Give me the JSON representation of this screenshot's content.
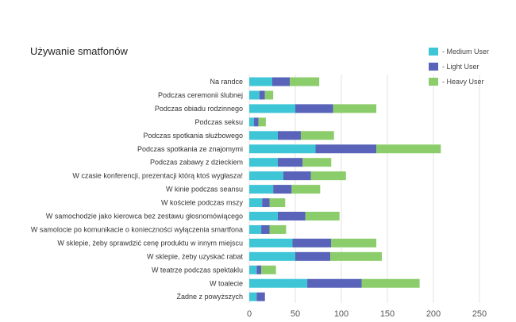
{
  "chart_data": {
    "type": "bar",
    "orientation": "horizontal",
    "stacked": true,
    "title": "Używanie smatfonów",
    "categories": [
      "Na randce",
      "Podczas ceremonii ślubnej",
      "Podczas obiadu rodzinnego",
      "Podczas seksu",
      "Podczas spotkania służbowego",
      "Podczas spotkania ze znajomymi",
      "Podczas zabawy z dzieckiem",
      "W czasie konferencji, prezentacji którą ktoś wygłasza!",
      "W kinie podczas seansu",
      "W kościele podczas mszy",
      "W samochodzie jako kierowca bez zestawu głosnomówiącego",
      "W samolocie po komunikacie o konieczności wyłączenia smartfona",
      "W sklepie, żeby sprawdzić cenę produktu w innym miejscu",
      "W sklepie, żeby uzyskać rabat",
      "W teatrze podczas spektaklu",
      "W toalecie",
      "Żadne z powyższych"
    ],
    "series": [
      {
        "name": "Medium User",
        "color": "#3ec6d6",
        "values": [
          25,
          11,
          50,
          5,
          31,
          72,
          31,
          37,
          26,
          14,
          31,
          13,
          47,
          50,
          8,
          63,
          8
        ]
      },
      {
        "name": "Light User",
        "color": "#5863b9",
        "values": [
          19,
          6,
          41,
          5,
          25,
          66,
          27,
          30,
          20,
          8,
          30,
          9,
          42,
          38,
          5,
          59,
          9
        ]
      },
      {
        "name": "Heavy User",
        "color": "#8ccd6b",
        "values": [
          32,
          9,
          47,
          8,
          36,
          70,
          31,
          38,
          31,
          17,
          37,
          18,
          49,
          56,
          16,
          63,
          0
        ]
      }
    ],
    "xlim": [
      0,
      250
    ],
    "xticks": [
      0,
      50,
      100,
      150,
      200,
      250
    ],
    "grid": true,
    "legend_position": "top-right"
  }
}
